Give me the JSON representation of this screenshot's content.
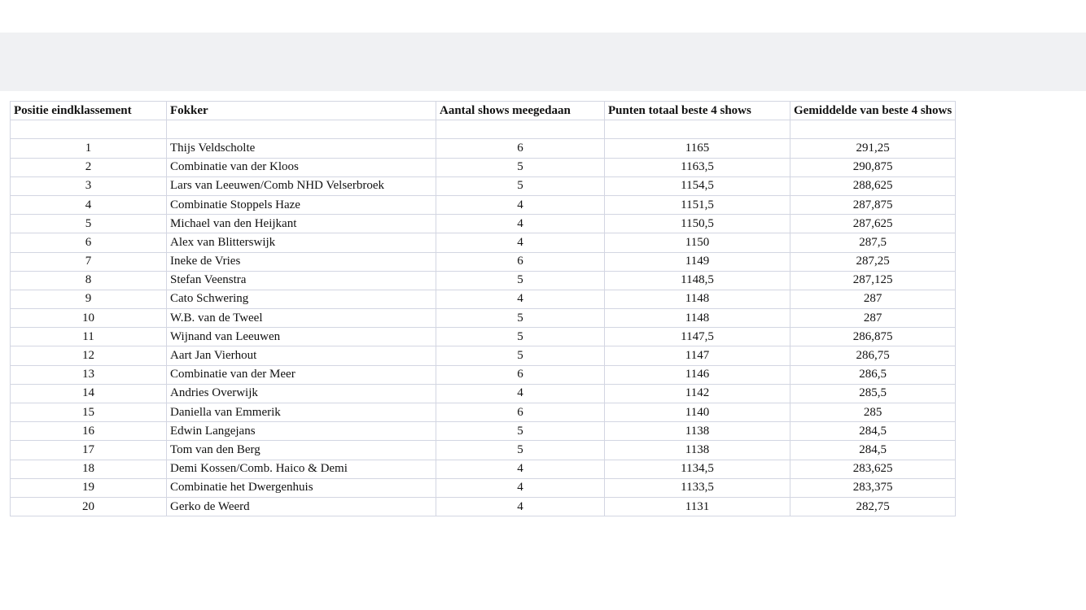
{
  "table": {
    "header": [
      "Positie eindklassement",
      "Fokker",
      "Aantal shows meegedaan",
      "Punten totaal  beste 4 shows",
      "Gemiddelde van beste 4 shows"
    ],
    "rows": [
      [
        "1",
        "Thijs Veldscholte",
        "6",
        "1165",
        "291,25"
      ],
      [
        "2",
        "Combinatie van der Kloos",
        "5",
        "1163,5",
        "290,875"
      ],
      [
        "3",
        "Lars van Leeuwen/Comb NHD Velserbroek",
        "5",
        "1154,5",
        "288,625"
      ],
      [
        "4",
        "Combinatie Stoppels Haze",
        "4",
        "1151,5",
        "287,875"
      ],
      [
        "5",
        "Michael van den Heijkant",
        "4",
        "1150,5",
        "287,625"
      ],
      [
        "6",
        "Alex van Blitterswijk",
        "4",
        "1150",
        "287,5"
      ],
      [
        "7",
        "Ineke de Vries",
        "6",
        "1149",
        "287,25"
      ],
      [
        "8",
        "Stefan Veenstra",
        "5",
        "1148,5",
        "287,125"
      ],
      [
        "9",
        "Cato Schwering",
        "4",
        "1148",
        "287"
      ],
      [
        "10",
        "W.B. van de Tweel",
        "5",
        "1148",
        "287"
      ],
      [
        "11",
        "Wijnand van Leeuwen",
        "5",
        "1147,5",
        "286,875"
      ],
      [
        "12",
        "Aart Jan Vierhout",
        "5",
        "1147",
        "286,75"
      ],
      [
        "13",
        "Combinatie van der Meer",
        "6",
        "1146",
        "286,5"
      ],
      [
        "14",
        "Andries Overwijk",
        "4",
        "1142",
        "285,5"
      ],
      [
        "15",
        "Daniella van Emmerik",
        "6",
        "1140",
        "285"
      ],
      [
        "16",
        "Edwin Langejans",
        "5",
        "1138",
        "284,5"
      ],
      [
        "17",
        "Tom van den Berg",
        "5",
        "1138",
        "284,5"
      ],
      [
        "18",
        "Demi Kossen/Comb. Haico & Demi",
        "4",
        "1134,5",
        "283,625"
      ],
      [
        "19",
        "Combinatie het Dwergenhuis",
        "4",
        "1133,5",
        "283,375"
      ],
      [
        "20",
        "Gerko de Weerd",
        "4",
        "1131",
        "282,75"
      ]
    ]
  }
}
